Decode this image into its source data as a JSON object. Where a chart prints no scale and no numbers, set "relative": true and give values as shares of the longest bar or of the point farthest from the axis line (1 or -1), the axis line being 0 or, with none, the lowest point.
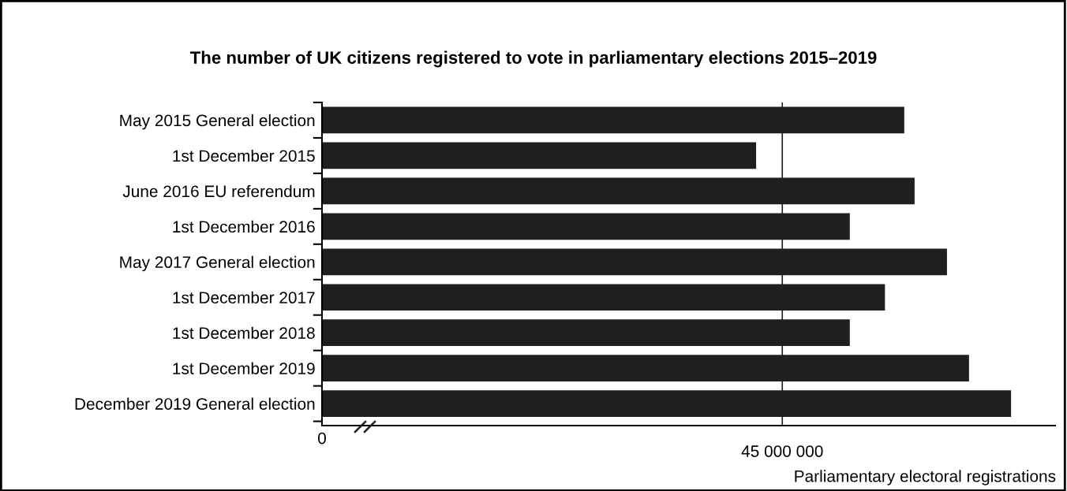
{
  "chart_data": {
    "type": "bar",
    "orientation": "horizontal",
    "relative": true,
    "title": "The number of UK citizens registered to vote in parliamentary elections 2015–2019",
    "xlabel": "Parliamentary electoral registrations",
    "categories": [
      "May 2015 General election",
      "1st December 2015",
      "June 2016 EU referendum",
      "1st December 2016",
      "May 2017 General election",
      "1st December 2017",
      "1st December 2018",
      "1st December 2019",
      "December 2019 General election"
    ],
    "values": [
      0.845,
      0.63,
      0.86,
      0.766,
      0.907,
      0.817,
      0.766,
      0.939,
      1.0
    ],
    "color": "#1f1f1d",
    "ref_lines": [
      {
        "axis": "x",
        "value": 0.668,
        "color": "#1f1f1d"
      }
    ],
    "annotations": [
      "0",
      "45 000 000"
    ],
    "grid": false,
    "legend": false
  }
}
